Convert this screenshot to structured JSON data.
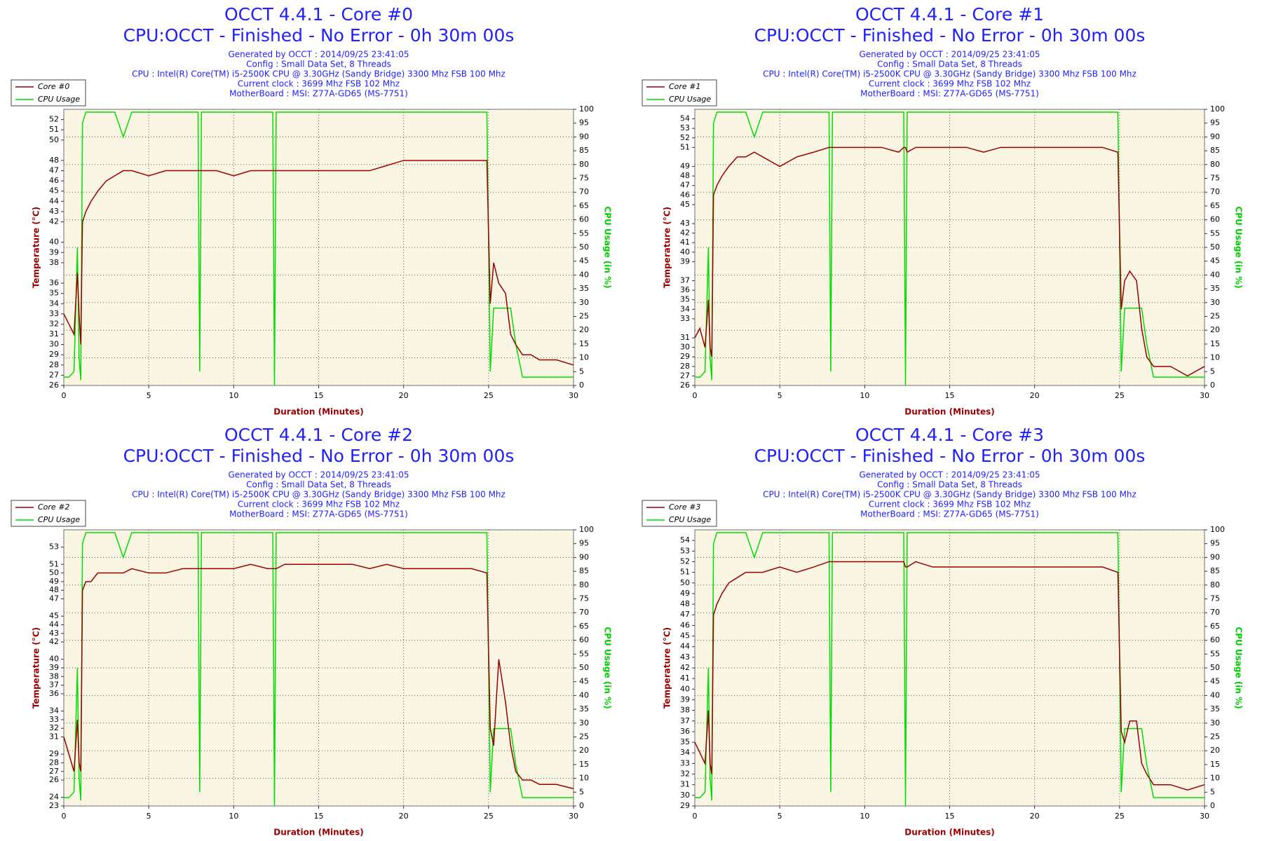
{
  "chart_data": [
    {
      "type": "line",
      "title": "OCCT 4.4.1 - Core #0",
      "subtitle": "CPU:OCCT - Finished - No Error - 0h 30m 00s",
      "info": [
        "Generated by OCCT : 2014/09/25 23:41:05",
        "Config : Small Data Set, 8 Threads",
        "CPU : Intel(R) Core(TM) i5-2500K CPU @ 3.30GHz (Sandy Bridge) 3300 Mhz FSB 100 Mhz",
        "Current clock : 3699 Mhz FSB 102 Mhz",
        "MotherBoard : MSI: Z77A-GD65 (MS-7751)"
      ],
      "xlabel": "Duration (Minutes)",
      "ylabel": "Temperature (°C)",
      "y2label": "CPU Usage (in %)",
      "x": [
        0,
        0.3,
        0.6,
        0.8,
        0.9,
        1.0,
        1.1,
        1.3,
        1.6,
        2,
        2.5,
        3,
        3.5,
        4,
        5,
        6,
        7,
        7.9,
        8,
        8.1,
        9,
        10,
        11,
        12,
        12.3,
        12.4,
        12.5,
        13,
        14,
        15,
        16,
        17,
        18,
        19,
        20,
        21,
        22,
        23,
        24,
        24.9,
        25.1,
        25.3,
        25.6,
        26,
        26.3,
        26.6,
        27,
        27.5,
        28,
        29,
        30
      ],
      "series": [
        {
          "name": "Core #0",
          "color": "#990000",
          "values": [
            33,
            32,
            31,
            37,
            33,
            30,
            42,
            43,
            44,
            45,
            46,
            46.5,
            47,
            47,
            46.5,
            47,
            47,
            47,
            47,
            47,
            47,
            46.5,
            47,
            47,
            47,
            47,
            47,
            47,
            47,
            47,
            47,
            47,
            47,
            47.5,
            48,
            48,
            48,
            48,
            48,
            48,
            34,
            38,
            36,
            35,
            31,
            30,
            29,
            29,
            28.5,
            28.5,
            28
          ]
        },
        {
          "name": "CPU Usage",
          "color": "#00dd00",
          "axis": "y2",
          "values": [
            3,
            3,
            5,
            50,
            10,
            2,
            95,
            99,
            99,
            99,
            99,
            99,
            90,
            99,
            99,
            99,
            99,
            99,
            5,
            99,
            99,
            99,
            99,
            99,
            99,
            0,
            99,
            99,
            99,
            99,
            99,
            99,
            99,
            99,
            99,
            99,
            99,
            99,
            99,
            99,
            5,
            28,
            28,
            28,
            28,
            15,
            3,
            3,
            3,
            3,
            3
          ]
        }
      ],
      "xlim": [
        0,
        30
      ],
      "xticks": [
        0,
        5,
        10,
        15,
        20,
        25,
        30
      ],
      "ylim": [
        26,
        53
      ],
      "yticks": [
        26,
        27,
        28,
        29,
        30,
        31,
        32,
        33,
        34,
        35,
        36,
        38,
        39,
        40,
        42,
        43,
        44,
        45,
        46,
        47,
        48,
        50,
        51,
        52
      ],
      "y2lim": [
        0,
        100
      ],
      "y2ticks": [
        0,
        5,
        10,
        15,
        20,
        25,
        30,
        35,
        40,
        45,
        50,
        55,
        60,
        65,
        70,
        75,
        80,
        85,
        90,
        95,
        100
      ],
      "grid": true,
      "legend": "top-left"
    },
    {
      "type": "line",
      "title": "OCCT 4.4.1 - Core #1",
      "subtitle": "CPU:OCCT - Finished - No Error - 0h 30m 00s",
      "info": [
        "Generated by OCCT : 2014/09/25 23:41:05",
        "Config : Small Data Set, 8 Threads",
        "CPU : Intel(R) Core(TM) i5-2500K CPU @ 3.30GHz (Sandy Bridge) 3300 Mhz FSB 100 Mhz",
        "Current clock : 3699 Mhz FSB 102 Mhz",
        "MotherBoard : MSI: Z77A-GD65 (MS-7751)"
      ],
      "xlabel": "Duration (Minutes)",
      "ylabel": "Temperature (°C)",
      "y2label": "CPU Usage (in %)",
      "x": [
        0,
        0.3,
        0.6,
        0.8,
        0.9,
        1.0,
        1.1,
        1.3,
        1.6,
        2,
        2.5,
        3,
        3.5,
        4,
        5,
        6,
        7,
        7.9,
        8,
        8.1,
        9,
        10,
        11,
        12,
        12.3,
        12.4,
        12.5,
        13,
        14,
        15,
        16,
        17,
        18,
        19,
        20,
        21,
        22,
        23,
        24,
        24.9,
        25.1,
        25.3,
        25.6,
        26,
        26.3,
        26.6,
        27,
        27.5,
        28,
        29,
        30
      ],
      "series": [
        {
          "name": "Core #1",
          "color": "#990000",
          "values": [
            31,
            32,
            30,
            35,
            30,
            29,
            46,
            47,
            48,
            49,
            50,
            50,
            50.5,
            50,
            49,
            50,
            50.5,
            51,
            51,
            51,
            51,
            51,
            51,
            50.5,
            51,
            51,
            50.5,
            51,
            51,
            51,
            51,
            50.5,
            51,
            51,
            51,
            51,
            51,
            51,
            51,
            50.5,
            34,
            37,
            38,
            37,
            32,
            29,
            28,
            28,
            28,
            27,
            28
          ]
        },
        {
          "name": "CPU Usage",
          "color": "#00dd00",
          "axis": "y2",
          "values": [
            3,
            3,
            5,
            50,
            10,
            2,
            95,
            99,
            99,
            99,
            99,
            99,
            90,
            99,
            99,
            99,
            99,
            99,
            5,
            99,
            99,
            99,
            99,
            99,
            99,
            0,
            99,
            99,
            99,
            99,
            99,
            99,
            99,
            99,
            99,
            99,
            99,
            99,
            99,
            99,
            5,
            28,
            28,
            28,
            28,
            15,
            3,
            3,
            3,
            3,
            3
          ]
        }
      ],
      "xlim": [
        0,
        30
      ],
      "xticks": [
        0,
        5,
        10,
        15,
        20,
        25,
        30
      ],
      "ylim": [
        26,
        55
      ],
      "yticks": [
        26,
        27,
        28,
        29,
        30,
        31,
        33,
        34,
        35,
        36,
        37,
        39,
        40,
        41,
        42,
        43,
        45,
        46,
        47,
        48,
        49,
        51,
        52,
        53,
        54
      ],
      "y2lim": [
        0,
        100
      ],
      "y2ticks": [
        0,
        5,
        10,
        15,
        20,
        25,
        30,
        35,
        40,
        45,
        50,
        55,
        60,
        65,
        70,
        75,
        80,
        85,
        90,
        95,
        100
      ],
      "grid": true,
      "legend": "top-left"
    },
    {
      "type": "line",
      "title": "OCCT 4.4.1 - Core #2",
      "subtitle": "CPU:OCCT - Finished - No Error - 0h 30m 00s",
      "info": [
        "Generated by OCCT : 2014/09/25 23:41:05",
        "Config : Small Data Set, 8 Threads",
        "CPU : Intel(R) Core(TM) i5-2500K CPU @ 3.30GHz (Sandy Bridge) 3300 Mhz FSB 100 Mhz",
        "Current clock : 3699 Mhz FSB 102 Mhz",
        "MotherBoard : MSI: Z77A-GD65 (MS-7751)"
      ],
      "xlabel": "Duration (Minutes)",
      "ylabel": "Temperature (°C)",
      "y2label": "CPU Usage (in %)",
      "x": [
        0,
        0.3,
        0.6,
        0.8,
        0.9,
        1.0,
        1.1,
        1.3,
        1.6,
        2,
        2.5,
        3,
        3.5,
        4,
        5,
        6,
        7,
        7.9,
        8,
        8.1,
        9,
        10,
        11,
        12,
        12.3,
        12.4,
        12.5,
        13,
        14,
        15,
        16,
        17,
        18,
        19,
        20,
        21,
        22,
        23,
        24,
        24.9,
        25.1,
        25.3,
        25.6,
        26,
        26.3,
        26.6,
        27,
        27.5,
        28,
        29,
        30
      ],
      "series": [
        {
          "name": "Core #2",
          "color": "#990000",
          "values": [
            31,
            29,
            27,
            33,
            28,
            27,
            48,
            49,
            49,
            50,
            50,
            50,
            50,
            50.5,
            50,
            50,
            50.5,
            50.5,
            50.5,
            50.5,
            50.5,
            50.5,
            51,
            50.5,
            50.5,
            50.5,
            50.5,
            51,
            51,
            51,
            51,
            51,
            50.5,
            51,
            50.5,
            50.5,
            50.5,
            50.5,
            50.5,
            50,
            32,
            30,
            40,
            35,
            30,
            27,
            26,
            26,
            25.5,
            25.5,
            25
          ]
        },
        {
          "name": "CPU Usage",
          "color": "#00dd00",
          "axis": "y2",
          "values": [
            3,
            3,
            5,
            50,
            10,
            2,
            95,
            99,
            99,
            99,
            99,
            99,
            90,
            99,
            99,
            99,
            99,
            99,
            5,
            99,
            99,
            99,
            99,
            99,
            99,
            0,
            99,
            99,
            99,
            99,
            99,
            99,
            99,
            99,
            99,
            99,
            99,
            99,
            99,
            99,
            5,
            28,
            28,
            28,
            28,
            15,
            3,
            3,
            3,
            3,
            3
          ]
        }
      ],
      "xlim": [
        0,
        30
      ],
      "xticks": [
        0,
        5,
        10,
        15,
        20,
        25,
        30
      ],
      "ylim": [
        23,
        55
      ],
      "yticks": [
        23,
        24,
        26,
        27,
        28,
        29,
        31,
        32,
        33,
        34,
        36,
        37,
        38,
        39,
        40,
        42,
        43,
        44,
        45,
        47,
        48,
        49,
        50,
        51,
        53
      ],
      "y2lim": [
        0,
        100
      ],
      "y2ticks": [
        0,
        5,
        10,
        15,
        20,
        25,
        30,
        35,
        40,
        45,
        50,
        55,
        60,
        65,
        70,
        75,
        80,
        85,
        90,
        95,
        100
      ],
      "grid": true,
      "legend": "top-left"
    },
    {
      "type": "line",
      "title": "OCCT 4.4.1 - Core #3",
      "subtitle": "CPU:OCCT - Finished - No Error - 0h 30m 00s",
      "info": [
        "Generated by OCCT : 2014/09/25 23:41:05",
        "Config : Small Data Set, 8 Threads",
        "CPU : Intel(R) Core(TM) i5-2500K CPU @ 3.30GHz (Sandy Bridge) 3300 Mhz FSB 100 Mhz",
        "Current clock : 3699 Mhz FSB 102 Mhz",
        "MotherBoard : MSI: Z77A-GD65 (MS-7751)"
      ],
      "xlabel": "Duration (Minutes)",
      "ylabel": "Temperature (°C)",
      "y2label": "CPU Usage (in %)",
      "x": [
        0,
        0.3,
        0.6,
        0.8,
        0.9,
        1.0,
        1.1,
        1.3,
        1.6,
        2,
        2.5,
        3,
        3.5,
        4,
        5,
        6,
        7,
        7.9,
        8,
        8.1,
        9,
        10,
        11,
        12,
        12.3,
        12.4,
        12.5,
        13,
        14,
        15,
        16,
        17,
        18,
        19,
        20,
        21,
        22,
        23,
        24,
        24.9,
        25.1,
        25.3,
        25.6,
        26,
        26.3,
        26.6,
        27,
        27.5,
        28,
        29,
        30
      ],
      "series": [
        {
          "name": "Core #3",
          "color": "#990000",
          "values": [
            35,
            34,
            33,
            38,
            33,
            32,
            47,
            48,
            49,
            50,
            50.5,
            51,
            51,
            51,
            51.5,
            51,
            51.5,
            52,
            52,
            52,
            52,
            52,
            52,
            52,
            52,
            51.5,
            51.5,
            52,
            51.5,
            51.5,
            51.5,
            51.5,
            51.5,
            51.5,
            51.5,
            51.5,
            51.5,
            51.5,
            51.5,
            51,
            36,
            35,
            37,
            37,
            33,
            32,
            31,
            31,
            31,
            30.5,
            31
          ]
        },
        {
          "name": "CPU Usage",
          "color": "#00dd00",
          "axis": "y2",
          "values": [
            3,
            3,
            5,
            50,
            10,
            2,
            95,
            99,
            99,
            99,
            99,
            99,
            90,
            99,
            99,
            99,
            99,
            99,
            5,
            99,
            99,
            99,
            99,
            99,
            99,
            0,
            99,
            99,
            99,
            99,
            99,
            99,
            99,
            99,
            99,
            99,
            99,
            99,
            99,
            99,
            5,
            28,
            28,
            28,
            28,
            15,
            3,
            3,
            3,
            3,
            3
          ]
        }
      ],
      "xlim": [
        0,
        30
      ],
      "xticks": [
        0,
        5,
        10,
        15,
        20,
        25,
        30
      ],
      "ylim": [
        29,
        55
      ],
      "yticks": [
        29,
        30,
        31,
        32,
        33,
        34,
        35,
        36,
        37,
        38,
        39,
        40,
        41,
        42,
        43,
        44,
        45,
        46,
        47,
        48,
        49,
        50,
        51,
        52,
        53,
        54
      ],
      "y2lim": [
        0,
        100
      ],
      "y2ticks": [
        0,
        5,
        10,
        15,
        20,
        25,
        30,
        35,
        40,
        45,
        50,
        55,
        60,
        65,
        70,
        75,
        80,
        85,
        90,
        95,
        100
      ],
      "grid": true,
      "legend": "top-left"
    }
  ]
}
